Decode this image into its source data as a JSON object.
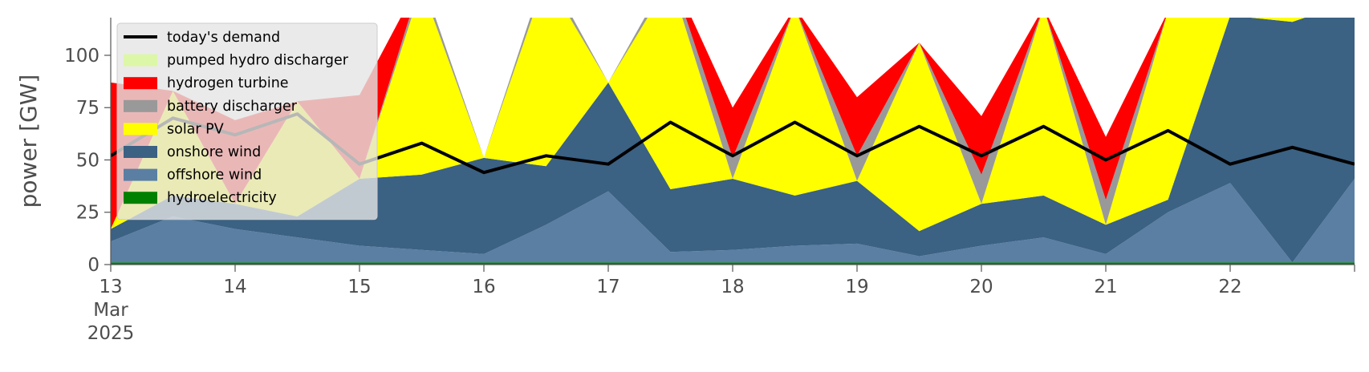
{
  "chart_data": {
    "type": "area",
    "title": "",
    "xlabel": "",
    "ylabel": "power [GW]",
    "ylim": [
      0,
      118
    ],
    "xlim": [
      "2025-03-13T00:00",
      "2025-03-23T00:00"
    ],
    "yticks": [
      0,
      25,
      50,
      75,
      100
    ],
    "xticks": [
      "13",
      "14",
      "15",
      "16",
      "17",
      "18",
      "19",
      "20",
      "21",
      "22"
    ],
    "xtick_month": "Mar",
    "xtick_year": "2025",
    "legend_position": "top-left",
    "grid": false,
    "x": [
      "2025-03-13T00:00",
      "2025-03-13T12:00",
      "2025-03-14T00:00",
      "2025-03-14T12:00",
      "2025-03-15T00:00",
      "2025-03-15T12:00",
      "2025-03-16T00:00",
      "2025-03-16T12:00",
      "2025-03-17T00:00",
      "2025-03-17T12:00",
      "2025-03-18T00:00",
      "2025-03-18T12:00",
      "2025-03-19T00:00",
      "2025-03-19T12:00",
      "2025-03-20T00:00",
      "2025-03-20T12:00",
      "2025-03-21T00:00",
      "2025-03-21T12:00",
      "2025-03-22T00:00",
      "2025-03-22T12:00",
      "2025-03-23T00:00"
    ],
    "series": [
      {
        "name": "hydroelectricity",
        "color": "#008000",
        "values": [
          1,
          1,
          1,
          1,
          1,
          1,
          1,
          1,
          1,
          1,
          1,
          1,
          1,
          1,
          1,
          1,
          1,
          1,
          1,
          1,
          1
        ]
      },
      {
        "name": "offshore wind",
        "color": "#5a7fa3",
        "values": [
          10,
          22,
          16,
          12,
          8,
          6,
          4,
          18,
          34,
          5,
          6,
          8,
          9,
          3,
          8,
          12,
          4,
          24,
          38,
          0,
          40
        ]
      },
      {
        "name": "onshore wind",
        "color": "#3b6183",
        "values": [
          6,
          10,
          12,
          10,
          32,
          36,
          46,
          28,
          52,
          30,
          34,
          24,
          30,
          12,
          20,
          20,
          14,
          6,
          80,
          115,
          85
        ]
      },
      {
        "name": "solar PV",
        "color": "#ffff00",
        "values": [
          0,
          50,
          0,
          55,
          0,
          90,
          0,
          90,
          0,
          100,
          0,
          90,
          0,
          90,
          0,
          90,
          0,
          90,
          0,
          40,
          0
        ]
      },
      {
        "name": "battery discharger",
        "color": "#999999",
        "values": [
          0,
          0,
          0,
          0,
          0,
          4,
          0,
          4,
          0,
          4,
          10,
          0,
          12,
          0,
          14,
          0,
          12,
          0,
          0,
          0,
          0
        ]
      },
      {
        "name": "hydrogen turbine",
        "color": "#ff0000",
        "values": [
          70,
          0,
          40,
          0,
          40,
          0,
          0,
          0,
          0,
          0,
          24,
          0,
          28,
          0,
          28,
          0,
          30,
          0,
          0,
          0,
          0
        ]
      },
      {
        "name": "pumped hydro discharger",
        "color": "#ddf7a8",
        "values": [
          0,
          0,
          0,
          0,
          0,
          0,
          0,
          0,
          0,
          0,
          0,
          0,
          0,
          0,
          0,
          0,
          0,
          0,
          0,
          0,
          0
        ]
      }
    ],
    "demand": {
      "name": "today's demand",
      "color": "#000000",
      "values": [
        52,
        70,
        62,
        72,
        48,
        58,
        44,
        52,
        48,
        68,
        52,
        68,
        52,
        66,
        52,
        66,
        50,
        64,
        48,
        56,
        48
      ]
    }
  }
}
